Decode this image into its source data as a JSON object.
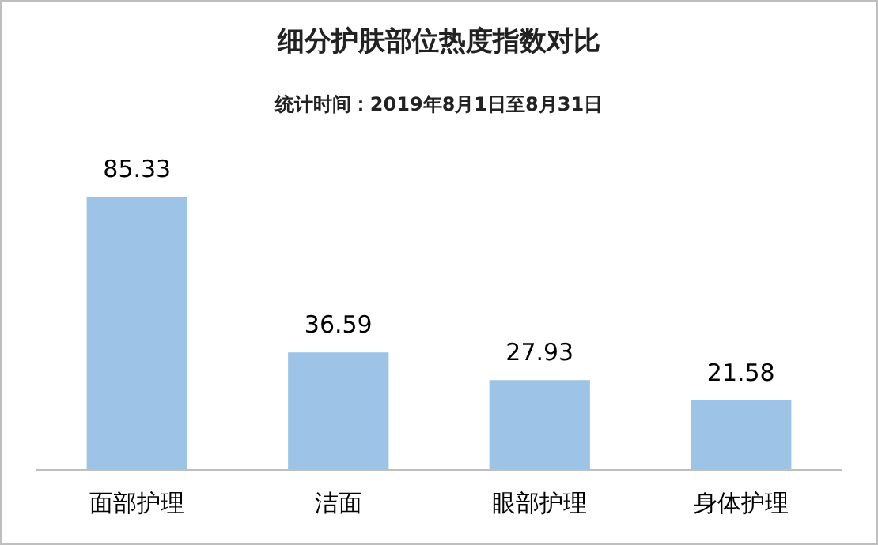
{
  "chart_data": {
    "type": "bar",
    "title": "细分护肤部位热度指数对比",
    "subtitle": "统计时间：2019年8月1日至8月31日",
    "categories": [
      "面部护理",
      "洁面",
      "眼部护理",
      "身体护理"
    ],
    "values": [
      85.33,
      36.59,
      27.93,
      21.58
    ],
    "color": "#9dc3e6",
    "data_labels": true,
    "tick_labels": "x"
  }
}
